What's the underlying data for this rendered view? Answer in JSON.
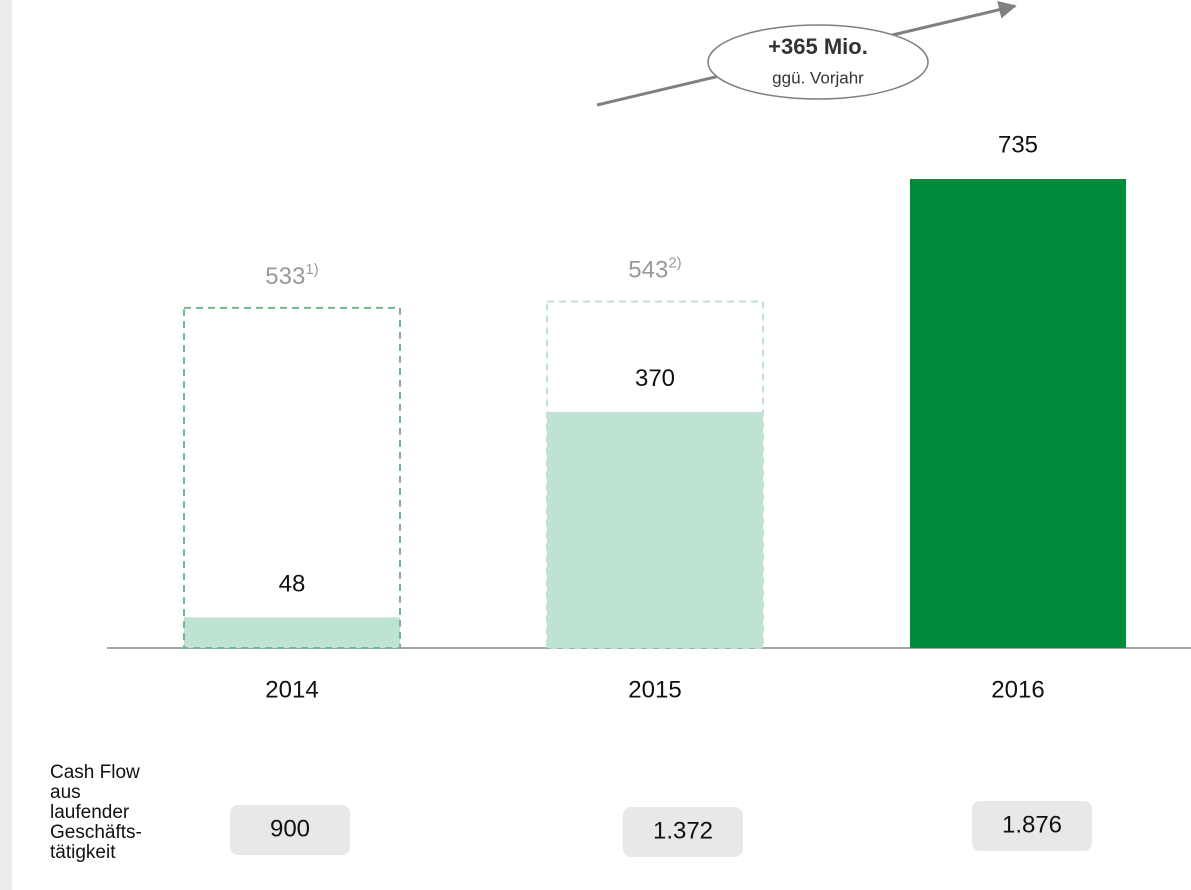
{
  "chart_data": {
    "type": "bar",
    "categories": [
      "2014",
      "2015",
      "2016"
    ],
    "values": [
      48,
      370,
      735
    ],
    "colors": [
      "#bfe3d2",
      "#bfe3d2",
      "#008a3c"
    ],
    "outline_values": [
      533,
      543,
      null
    ],
    "outline_notes": [
      "1)",
      "2)",
      null
    ],
    "outline_colors": [
      "#6fb88f",
      "#bfe3d2",
      null
    ],
    "annotation": {
      "title": "+365 Mio.",
      "text": "ggü. Vorjahr"
    },
    "cash_flow": {
      "label": "Cash Flow aus laufender Geschäfts-tätigkeit",
      "values": [
        900,
        1372,
        1876
      ],
      "value_labels": [
        "900",
        "1.372",
        "1.876"
      ]
    }
  }
}
